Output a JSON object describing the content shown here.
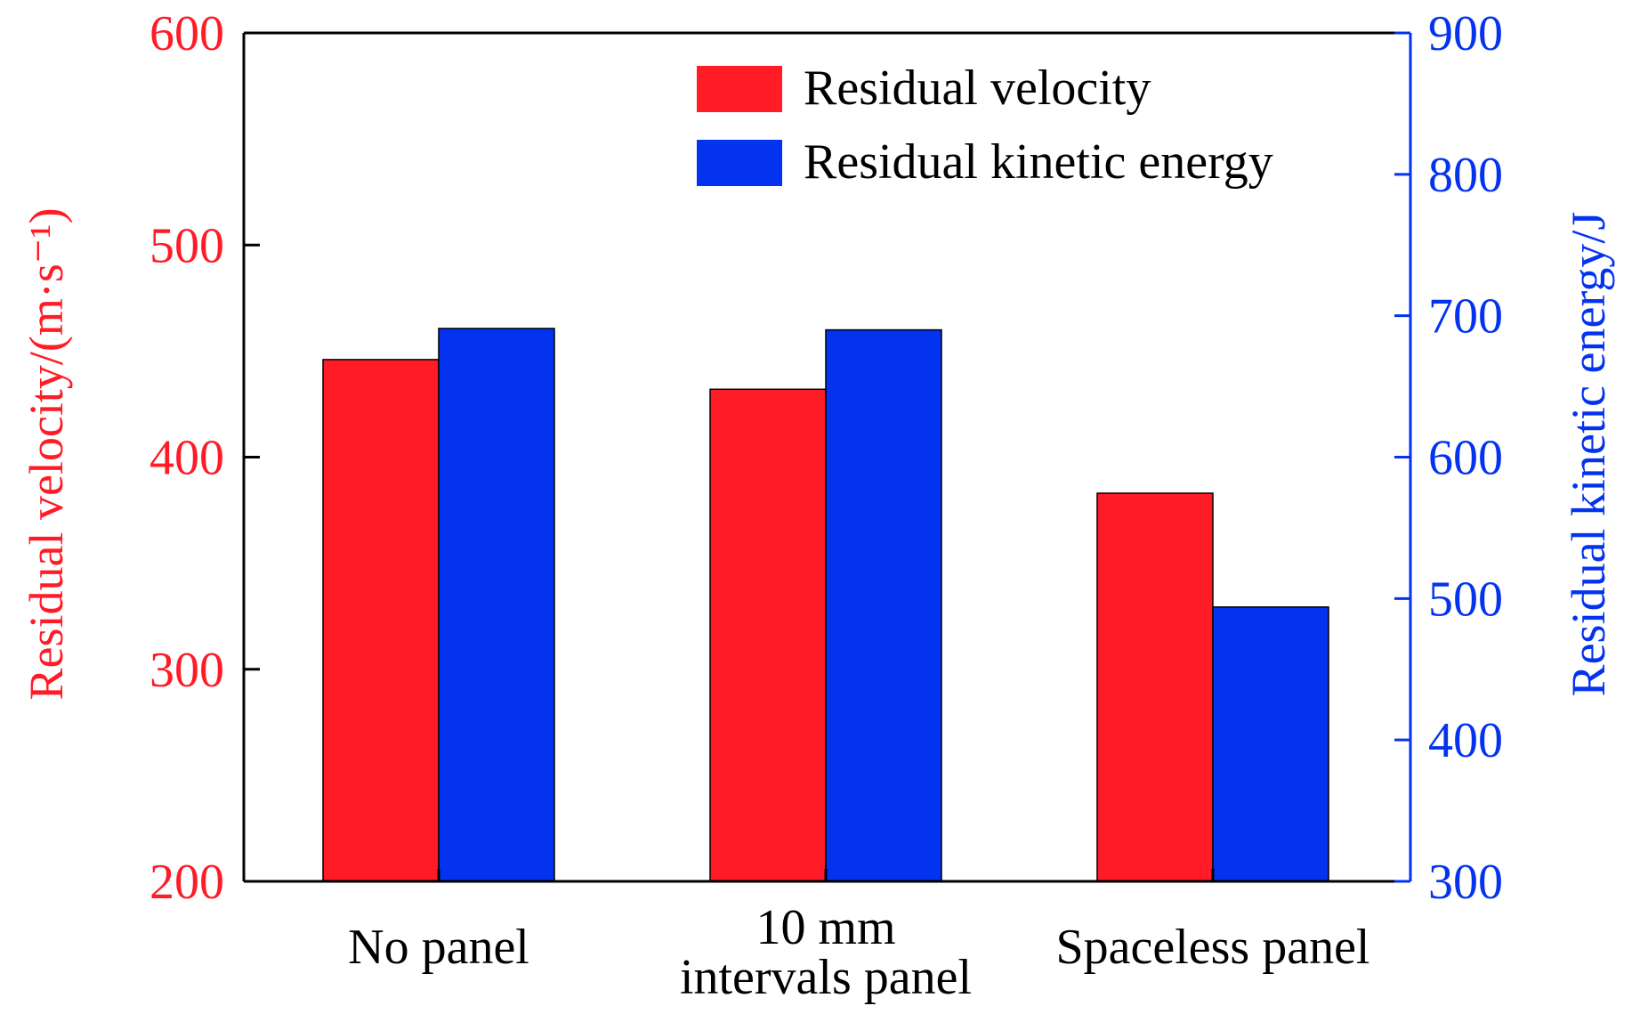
{
  "chart_data": {
    "type": "bar",
    "categories": [
      "No panel",
      "10 mm\nintervals panel",
      "Spaceless panel"
    ],
    "series": [
      {
        "name": "Residual velocity",
        "axis": "left",
        "color": "#ff1c26",
        "values": [
          446,
          432,
          383
        ]
      },
      {
        "name": "Residual kinetic energy",
        "axis": "right",
        "color": "#0433f0",
        "values": [
          691,
          690,
          494
        ]
      }
    ],
    "y_left": {
      "label": "Residual velocity/(m·s⁻¹)",
      "ylim": [
        200,
        600
      ],
      "ticks": [
        200,
        300,
        400,
        500,
        600
      ],
      "color": "#ff1c26"
    },
    "y_right": {
      "label": "Residual kinetic energy/J",
      "ylim": [
        300,
        900
      ],
      "ticks": [
        300,
        400,
        500,
        600,
        700,
        800,
        900
      ],
      "color": "#0433f0"
    },
    "legend": "top-right",
    "grid": false
  }
}
